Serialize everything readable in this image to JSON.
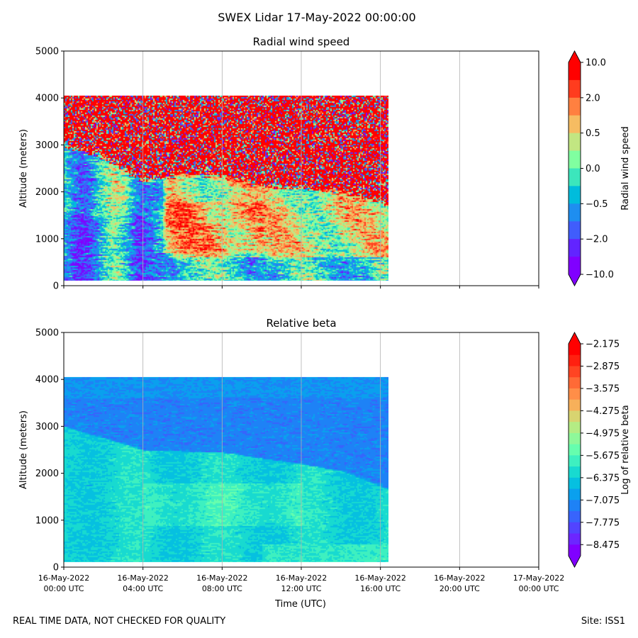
{
  "figure": {
    "title": "SWEX Lidar 17-May-2022 00:00:00",
    "footer_left": "REAL TIME DATA, NOT CHECKED FOR QUALITY",
    "footer_right": "Site: ISS1"
  },
  "chart_data": [
    {
      "type": "heatmap",
      "title": "Radial wind speed",
      "ylabel": "Altitude (meters)",
      "xlabel": "",
      "ylim": [
        0,
        5000
      ],
      "yticks": [
        0,
        1000,
        2000,
        3000,
        4000,
        5000
      ],
      "xlim_hours": [
        0,
        24
      ],
      "xticks_hours": [
        0,
        4,
        8,
        12,
        16,
        20,
        24
      ],
      "xtick_labels": [],
      "grid": "vertical",
      "data_extent": {
        "t_start_h": 0,
        "t_end_h": 16.4,
        "alt_min": 100,
        "alt_max": 4050
      },
      "features": {
        "noisy_layer_top_m": [
          [
            0,
            3000
          ],
          [
            2,
            2750
          ],
          [
            4,
            2250
          ],
          [
            6,
            2400
          ],
          [
            8,
            2350
          ],
          [
            10,
            2150
          ],
          [
            12,
            2100
          ],
          [
            14,
            2000
          ],
          [
            16.4,
            1750
          ]
        ]
      },
      "colorbar": {
        "label": "Radial wind speed",
        "tick_labels": [
          "10.0",
          "2.0",
          "0.5",
          "0.0",
          "−0.5",
          "−2.0",
          "−10.0"
        ],
        "colors": [
          "#ff0000",
          "#ff3c1e",
          "#ff8040",
          "#f6bc62",
          "#c2e682",
          "#80ffa0",
          "#3ce6bc",
          "#00bcdc",
          "#1e8ef0",
          "#405dfc",
          "#6224ff",
          "#8000ff"
        ],
        "extend": "both",
        "cmap": "rainbow"
      }
    },
    {
      "type": "heatmap",
      "title": "Relative beta",
      "ylabel": "Altitude (meters)",
      "xlabel": "Time (UTC)",
      "ylim": [
        0,
        5000
      ],
      "yticks": [
        0,
        1000,
        2000,
        3000,
        4000,
        5000
      ],
      "xlim_hours": [
        0,
        24
      ],
      "xticks_hours": [
        0,
        4,
        8,
        12,
        16,
        20,
        24
      ],
      "xtick_labels": [
        [
          "16-May-2022",
          "00:00 UTC"
        ],
        [
          "16-May-2022",
          "04:00 UTC"
        ],
        [
          "16-May-2022",
          "08:00 UTC"
        ],
        [
          "16-May-2022",
          "12:00 UTC"
        ],
        [
          "16-May-2022",
          "16:00 UTC"
        ],
        [
          "16-May-2022",
          "20:00 UTC"
        ],
        [
          "17-May-2022",
          "00:00 UTC"
        ]
      ],
      "grid": "vertical",
      "data_extent": {
        "t_start_h": 0,
        "t_end_h": 16.4,
        "alt_min": 100,
        "alt_max": 4050
      },
      "features": {
        "upper_layer_boundary_m": [
          [
            0,
            3000
          ],
          [
            2,
            2750
          ],
          [
            4,
            2500
          ],
          [
            8,
            2450
          ],
          [
            12,
            2200
          ],
          [
            14,
            2050
          ],
          [
            16.4,
            1650
          ]
        ]
      },
      "colorbar": {
        "label": "Log of relative beta",
        "tick_labels": [
          "−2.175",
          "−2.875",
          "−3.575",
          "−4.275",
          "−4.975",
          "−5.675",
          "−6.375",
          "−7.075",
          "−7.775",
          "−8.475"
        ],
        "colors": [
          "#ff0000",
          "#ff2010",
          "#ff4422",
          "#ff6a36",
          "#ff8e48",
          "#f7b05a",
          "#d8d470",
          "#b4ec84",
          "#8ef89a",
          "#66feae",
          "#3ef0c0",
          "#18dad0",
          "#06c0e0",
          "#0aa0ee",
          "#1e82f6",
          "#3864fc",
          "#5244ff",
          "#6c26ff",
          "#8000ff"
        ],
        "extend": "both",
        "cmap": "rainbow"
      }
    }
  ]
}
